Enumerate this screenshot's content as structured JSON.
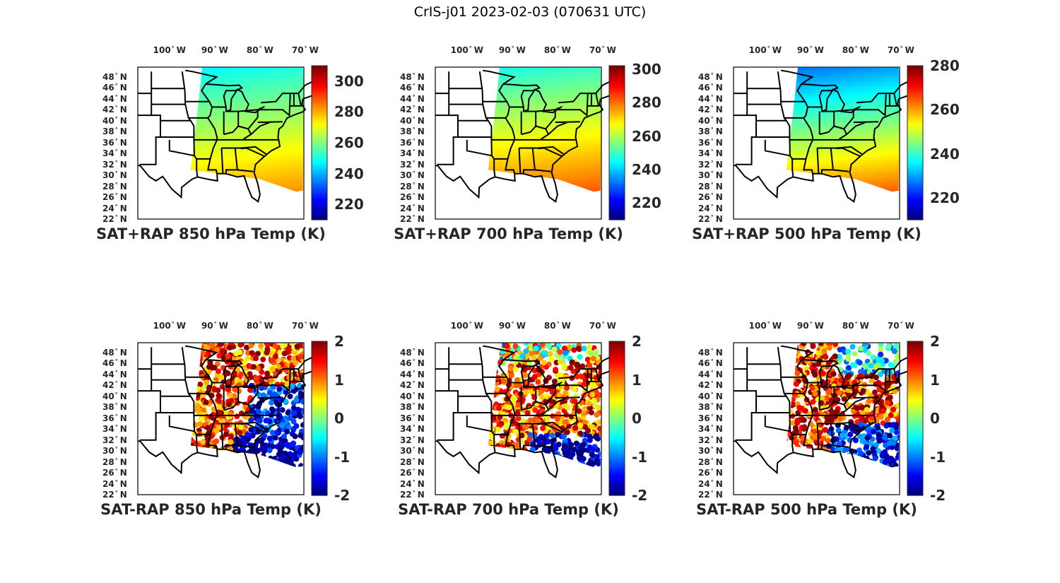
{
  "figure_title": "CrIS-j01 2023-02-03 (070631 UTC)",
  "colormap": "jet",
  "lon_ticks": [
    "100",
    "90",
    "80",
    "70"
  ],
  "lon_hemisphere": "W",
  "lat_ticks": [
    "48",
    "46",
    "44",
    "42",
    "40",
    "38",
    "36",
    "34",
    "32",
    "30",
    "28",
    "26",
    "24",
    "22"
  ],
  "lat_hemisphere": "N",
  "panels": [
    {
      "title": "SAT+RAP 850 hPa Temp (K)",
      "kind": "temp",
      "clim": [
        210,
        310
      ],
      "cbar_ticks": [
        "220",
        "240",
        "260",
        "280",
        "300"
      ]
    },
    {
      "title": "SAT+RAP 700 hPa Temp (K)",
      "kind": "temp",
      "clim": [
        210,
        302
      ],
      "cbar_ticks": [
        "220",
        "240",
        "260",
        "280",
        "300"
      ]
    },
    {
      "title": "SAT+RAP 500 hPa Temp (K)",
      "kind": "temp",
      "clim": [
        210,
        280
      ],
      "cbar_ticks": [
        "220",
        "240",
        "260",
        "280"
      ]
    },
    {
      "title": "SAT-RAP 850 hPa Temp (K)",
      "kind": "diff",
      "clim": [
        -2,
        2
      ],
      "cbar_ticks": [
        "-2",
        "-1",
        "0",
        "1",
        "2"
      ]
    },
    {
      "title": "SAT-RAP 700 hPa Temp (K)",
      "kind": "diff",
      "clim": [
        -2,
        2
      ],
      "cbar_ticks": [
        "-2",
        "-1",
        "0",
        "1",
        "2"
      ]
    },
    {
      "title": "SAT-RAP 500 hPa Temp (K)",
      "kind": "diff",
      "clim": [
        -2,
        2
      ],
      "cbar_ticks": [
        "-2",
        "-1",
        "0",
        "1",
        "2"
      ]
    }
  ]
}
